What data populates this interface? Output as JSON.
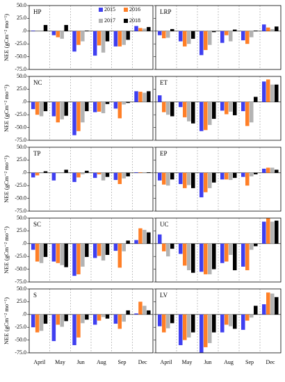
{
  "chart_data": [
    {
      "type": "bar",
      "title": "HP",
      "ylabel": "NEE (gCm⁻² mo⁻¹)",
      "ylim": [
        -75,
        50
      ],
      "yticks": [
        {
          "value": 50,
          "label": "50.0"
        },
        {
          "value": 25,
          "label": "25.0"
        },
        {
          "value": 0,
          "label": ".0"
        },
        {
          "value": -25,
          "label": "-25.0"
        },
        {
          "value": -50,
          "label": "-50.0"
        },
        {
          "value": -75,
          "label": "-75.0"
        }
      ],
      "legend": "top-center",
      "series": [
        {
          "name": "2015",
          "color": "#3f3ff0",
          "values": [
            1,
            -8,
            -40,
            -48,
            -30,
            10
          ]
        },
        {
          "name": "2016",
          "color": "#ff7f27",
          "values": [
            0,
            -12,
            -27,
            -28,
            -30,
            6
          ]
        },
        {
          "name": "2017",
          "color": "#b3b3b3",
          "values": [
            0,
            -15,
            -20,
            -42,
            -27,
            5
          ]
        },
        {
          "name": "2018",
          "color": "#000000",
          "values": [
            12,
            12,
            1,
            -20,
            -17,
            8
          ]
        }
      ]
    },
    {
      "type": "bar",
      "title": "LRP",
      "ylim": [
        -75,
        50
      ],
      "yticks": [
        50,
        25,
        0,
        -25,
        -50,
        -75
      ],
      "series": [
        {
          "color": "#3f3ff0",
          "values": [
            -8,
            -20,
            -47,
            -23,
            -18,
            13
          ]
        },
        {
          "color": "#ff7f27",
          "values": [
            -14,
            -30,
            -37,
            -8,
            -25,
            7
          ]
        },
        {
          "color": "#b3b3b3",
          "values": [
            -13,
            -25,
            -27,
            -20,
            -12,
            4
          ]
        },
        {
          "color": "#000000",
          "values": [
            4,
            -15,
            -2,
            3,
            1,
            9
          ]
        }
      ]
    },
    {
      "type": "bar",
      "title": "NC",
      "ylabel": "NEE (gCm⁻² mo⁻¹)",
      "ylim": [
        -75,
        50
      ],
      "yticks": [
        {
          "value": 50,
          "label": "50.0"
        },
        {
          "value": 25,
          "label": "25.0"
        },
        {
          "value": 0,
          "label": ".0"
        },
        {
          "value": -25,
          "label": "-25.0"
        },
        {
          "value": -50,
          "label": "-50.0"
        },
        {
          "value": -75,
          "label": "-75.0"
        }
      ],
      "series": [
        {
          "color": "#3f3ff0",
          "values": [
            -14,
            -28,
            -65,
            -20,
            -13,
            21
          ]
        },
        {
          "color": "#ff7f27",
          "values": [
            -25,
            -40,
            -57,
            -19,
            -32,
            20
          ]
        },
        {
          "color": "#b3b3b3",
          "values": [
            -28,
            -34,
            -40,
            -22,
            -5,
            18
          ]
        },
        {
          "color": "#000000",
          "values": [
            -18,
            -27,
            -18,
            -4,
            -2,
            21
          ]
        }
      ]
    },
    {
      "type": "bar",
      "title": "ET",
      "ylim": [
        -75,
        50
      ],
      "yticks": [
        50,
        25,
        0,
        -25,
        -50,
        -75
      ],
      "series": [
        {
          "color": "#3f3ff0",
          "values": [
            13,
            -10,
            -57,
            -17,
            -18,
            40
          ]
        },
        {
          "color": "#ff7f27",
          "values": [
            -20,
            -30,
            -55,
            -24,
            -47,
            44
          ]
        },
        {
          "color": "#b3b3b3",
          "values": [
            -25,
            -38,
            -45,
            -19,
            -40,
            34
          ]
        },
        {
          "color": "#000000",
          "values": [
            -28,
            -42,
            -33,
            -26,
            10,
            34
          ]
        }
      ]
    },
    {
      "type": "bar",
      "title": "TP",
      "ylabel": "NEE (gCm⁻² mo⁻¹)",
      "ylim": [
        -75,
        50
      ],
      "yticks": [
        {
          "value": 50,
          "label": "50.0"
        },
        {
          "value": 25,
          "label": "25.0"
        },
        {
          "value": 0,
          "label": ".0"
        },
        {
          "value": -25,
          "label": "-25.0"
        },
        {
          "value": -50,
          "label": "-50.0"
        },
        {
          "value": -75,
          "label": "-75.0"
        }
      ],
      "series": [
        {
          "color": "#3f3ff0",
          "values": [
            -9,
            -15,
            -18,
            -10,
            -14,
            1
          ]
        },
        {
          "color": "#ff7f27",
          "values": [
            -5,
            0,
            -9,
            -3,
            -22,
            1
          ]
        },
        {
          "color": "#b3b3b3",
          "values": [
            0,
            0,
            -3,
            -15,
            -11,
            1
          ]
        },
        {
          "color": "#000000",
          "values": [
            3,
            6,
            4,
            -8,
            -7,
            1
          ]
        }
      ]
    },
    {
      "type": "bar",
      "title": "EP",
      "ylim": [
        -75,
        50
      ],
      "yticks": [
        50,
        25,
        0,
        -25,
        -50,
        -75
      ],
      "series": [
        {
          "color": "#3f3ff0",
          "values": [
            -15,
            -22,
            -48,
            -13,
            -8,
            8
          ]
        },
        {
          "color": "#ff7f27",
          "values": [
            -23,
            -30,
            -38,
            -13,
            -25,
            10
          ]
        },
        {
          "color": "#b3b3b3",
          "values": [
            -25,
            -24,
            -30,
            -14,
            -7,
            10
          ]
        },
        {
          "color": "#000000",
          "values": [
            -13,
            -30,
            -19,
            -10,
            -3,
            6
          ]
        }
      ]
    },
    {
      "type": "bar",
      "title": "SC",
      "ylabel": "NEE (gCm⁻² mo⁻¹)",
      "ylim": [
        -75,
        50
      ],
      "yticks": [
        {
          "value": 50,
          "label": "50.0"
        },
        {
          "value": 25,
          "label": "25.0"
        },
        {
          "value": 0,
          "label": ".0"
        },
        {
          "value": -25,
          "label": "-25.0"
        },
        {
          "value": -50,
          "label": "-50.0"
        },
        {
          "value": -75,
          "label": "-75.0"
        }
      ],
      "series": [
        {
          "color": "#3f3ff0",
          "values": [
            -12,
            -35,
            -63,
            -28,
            -14,
            7
          ]
        },
        {
          "color": "#ff7f27",
          "values": [
            -35,
            -38,
            -60,
            -24,
            -47,
            30
          ]
        },
        {
          "color": "#b3b3b3",
          "values": [
            -38,
            -42,
            -45,
            -33,
            -15,
            27
          ]
        },
        {
          "color": "#000000",
          "values": [
            -26,
            -46,
            -26,
            -22,
            6,
            22
          ]
        }
      ]
    },
    {
      "type": "bar",
      "title": "UC",
      "ylim": [
        -75,
        50
      ],
      "yticks": [
        50,
        25,
        0,
        -25,
        -50,
        -75
      ],
      "series": [
        {
          "color": "#3f3ff0",
          "values": [
            18,
            -20,
            -55,
            -38,
            -45,
            43
          ]
        },
        {
          "color": "#ff7f27",
          "values": [
            -15,
            -43,
            -60,
            -35,
            -52,
            50
          ]
        },
        {
          "color": "#b3b3b3",
          "values": [
            -25,
            -52,
            -60,
            -22,
            -12,
            43
          ]
        },
        {
          "color": "#000000",
          "values": [
            -10,
            -57,
            -50,
            -52,
            -5,
            45
          ]
        }
      ]
    },
    {
      "type": "bar",
      "title": "S",
      "ylabel": "NEE (gCm⁻² mo⁻¹)",
      "ylim": [
        -75,
        50
      ],
      "yticks": [
        {
          "value": 50,
          "label": "50.0"
        },
        {
          "value": 25,
          "label": "25.0"
        },
        {
          "value": 0,
          "label": ".0"
        },
        {
          "value": -25,
          "label": "-25.0"
        },
        {
          "value": -50,
          "label": "-50.0"
        },
        {
          "value": -75,
          "label": "-75.0"
        }
      ],
      "categories": [
        "April",
        "May",
        "Jun",
        "Aug",
        "Sep",
        "Dec"
      ],
      "series": [
        {
          "color": "#3f3ff0",
          "values": [
            -25,
            -52,
            -60,
            -20,
            -18,
            2
          ]
        },
        {
          "color": "#ff7f27",
          "values": [
            -35,
            -20,
            -45,
            -12,
            -28,
            25
          ]
        },
        {
          "color": "#b3b3b3",
          "values": [
            -32,
            -24,
            -17,
            -5,
            -14,
            17
          ]
        },
        {
          "color": "#000000",
          "values": [
            -18,
            -13,
            -10,
            -8,
            8,
            8
          ]
        }
      ]
    },
    {
      "type": "bar",
      "title": "LV",
      "ylim": [
        -75,
        50
      ],
      "yticks": [
        50,
        25,
        0,
        -25,
        -50,
        -75
      ],
      "categories": [
        "April",
        "May",
        "Jun",
        "Aug",
        "Sep",
        "Dec"
      ],
      "series": [
        {
          "color": "#3f3ff0",
          "values": [
            -23,
            -60,
            -75,
            -35,
            -30,
            20
          ]
        },
        {
          "color": "#ff7f27",
          "values": [
            -35,
            -50,
            -64,
            -20,
            -12,
            43
          ]
        },
        {
          "color": "#b3b3b3",
          "values": [
            -27,
            -45,
            -56,
            -23,
            -6,
            41
          ]
        },
        {
          "color": "#000000",
          "values": [
            -17,
            -35,
            -35,
            -28,
            17,
            34
          ]
        }
      ]
    }
  ]
}
